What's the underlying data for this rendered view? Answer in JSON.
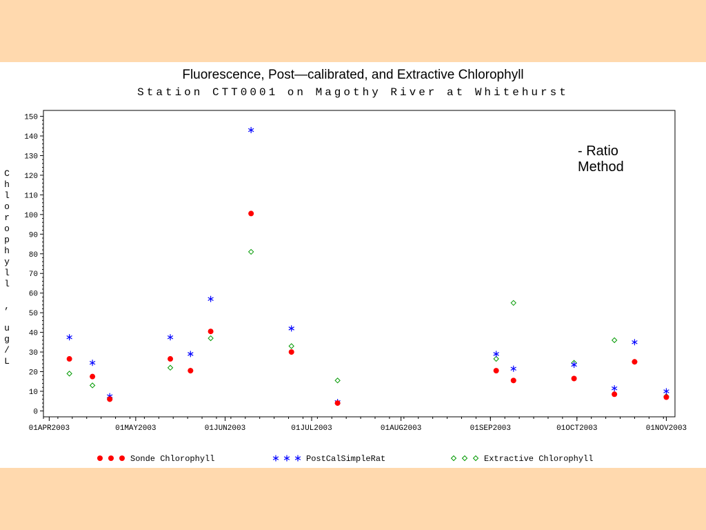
{
  "page": {
    "background": "#ffd9ae",
    "panel_background": "#ffffff"
  },
  "annotation": "- Ratio\nMethod",
  "chart_data": {
    "type": "scatter",
    "title": "Fluorescence, Post—calibrated, and Extractive Chlorophyll",
    "subtitle": "Station CTT0001 on Magothy River at Whitehurst",
    "ylabel": "Chlorophyll , ug/L",
    "xlabel": "",
    "xlim": [
      "2003-03-30",
      "2003-11-04"
    ],
    "ylim": [
      -3,
      153
    ],
    "grid": false,
    "legend_position": "bottom",
    "x_ticks": [
      "2003-04-01",
      "2003-05-01",
      "2003-06-01",
      "2003-07-01",
      "2003-08-01",
      "2003-09-01",
      "2003-10-01",
      "2003-11-01"
    ],
    "x_tick_labels": [
      "01APR2003",
      "01MAY2003",
      "01JUN2003",
      "01JUL2003",
      "01AUG2003",
      "01SEP2003",
      "01OCT2003",
      "01NOV2003"
    ],
    "y_ticks": [
      0,
      10,
      20,
      30,
      40,
      50,
      60,
      70,
      80,
      90,
      100,
      110,
      120,
      130,
      140,
      150
    ],
    "series": [
      {
        "name": "Sonde Chlorophyll",
        "marker": "dot",
        "color": "#ff0000",
        "points": [
          {
            "x": "2003-04-08",
            "y": 26.5
          },
          {
            "x": "2003-04-16",
            "y": 17.5
          },
          {
            "x": "2003-04-22",
            "y": 6
          },
          {
            "x": "2003-05-13",
            "y": 26.5
          },
          {
            "x": "2003-05-20",
            "y": 20.5
          },
          {
            "x": "2003-05-27",
            "y": 40.5
          },
          {
            "x": "2003-06-10",
            "y": 100.5
          },
          {
            "x": "2003-06-24",
            "y": 30
          },
          {
            "x": "2003-07-10",
            "y": 4
          },
          {
            "x": "2003-09-03",
            "y": 20.5
          },
          {
            "x": "2003-09-09",
            "y": 15.5
          },
          {
            "x": "2003-09-30",
            "y": 16.5
          },
          {
            "x": "2003-10-14",
            "y": 8.5
          },
          {
            "x": "2003-10-21",
            "y": 25
          },
          {
            "x": "2003-11-01",
            "y": 7
          }
        ]
      },
      {
        "name": "PostCalSimpleRat",
        "marker": "asterisk",
        "color": "#0000ff",
        "points": [
          {
            "x": "2003-04-08",
            "y": 37.5
          },
          {
            "x": "2003-04-16",
            "y": 24.5
          },
          {
            "x": "2003-04-22",
            "y": 7.5
          },
          {
            "x": "2003-05-13",
            "y": 37.5
          },
          {
            "x": "2003-05-20",
            "y": 29
          },
          {
            "x": "2003-05-27",
            "y": 57
          },
          {
            "x": "2003-06-10",
            "y": 143
          },
          {
            "x": "2003-06-24",
            "y": 42
          },
          {
            "x": "2003-07-10",
            "y": 4.5
          },
          {
            "x": "2003-09-03",
            "y": 29
          },
          {
            "x": "2003-09-09",
            "y": 21.5
          },
          {
            "x": "2003-09-30",
            "y": 23.5
          },
          {
            "x": "2003-10-14",
            "y": 11.5
          },
          {
            "x": "2003-10-21",
            "y": 35
          },
          {
            "x": "2003-11-01",
            "y": 10
          }
        ]
      },
      {
        "name": "Extractive Chlorophyll",
        "marker": "diamond",
        "color": "#009900",
        "points": [
          {
            "x": "2003-04-08",
            "y": 19
          },
          {
            "x": "2003-04-16",
            "y": 13
          },
          {
            "x": "2003-04-22",
            "y": 6
          },
          {
            "x": "2003-05-13",
            "y": 22
          },
          {
            "x": "2003-05-20",
            "y": 20.5
          },
          {
            "x": "2003-05-27",
            "y": 37
          },
          {
            "x": "2003-06-10",
            "y": 81
          },
          {
            "x": "2003-06-24",
            "y": 33
          },
          {
            "x": "2003-07-10",
            "y": 15.5
          },
          {
            "x": "2003-09-03",
            "y": 26.5
          },
          {
            "x": "2003-09-09",
            "y": 55
          },
          {
            "x": "2003-09-30",
            "y": 24.5
          },
          {
            "x": "2003-10-14",
            "y": 36
          },
          {
            "x": "2003-10-21",
            "y": 25
          },
          {
            "x": "2003-11-01",
            "y": 7.5
          }
        ]
      }
    ]
  }
}
